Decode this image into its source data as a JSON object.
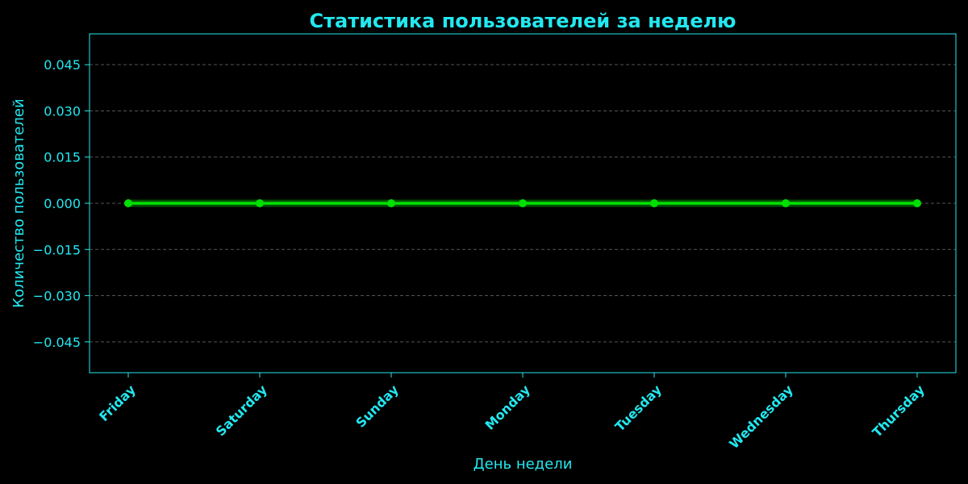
{
  "colors": {
    "background": "#000000",
    "text": "#22e8f0",
    "line": "#00e000",
    "grid": "#555555"
  },
  "chart_data": {
    "type": "line",
    "title": "Статистика пользователей за неделю",
    "xlabel": "День недели",
    "ylabel": "Количество пользователей",
    "categories": [
      "Friday",
      "Saturday",
      "Sunday",
      "Monday",
      "Tuesday",
      "Wednesday",
      "Thursday"
    ],
    "series": [
      {
        "values": [
          0,
          0,
          0,
          0,
          0,
          0,
          0
        ]
      }
    ],
    "ylim": [
      -0.055,
      0.055
    ],
    "yticks": [
      0.045,
      0.03,
      0.015,
      0.0,
      -0.015,
      -0.03,
      -0.045
    ],
    "ytick_labels": [
      "0.045",
      "0.030",
      "0.015",
      "0.000",
      "−0.015",
      "−0.030",
      "−0.045"
    ],
    "grid": "horizontal-dashed",
    "legend": "none"
  }
}
